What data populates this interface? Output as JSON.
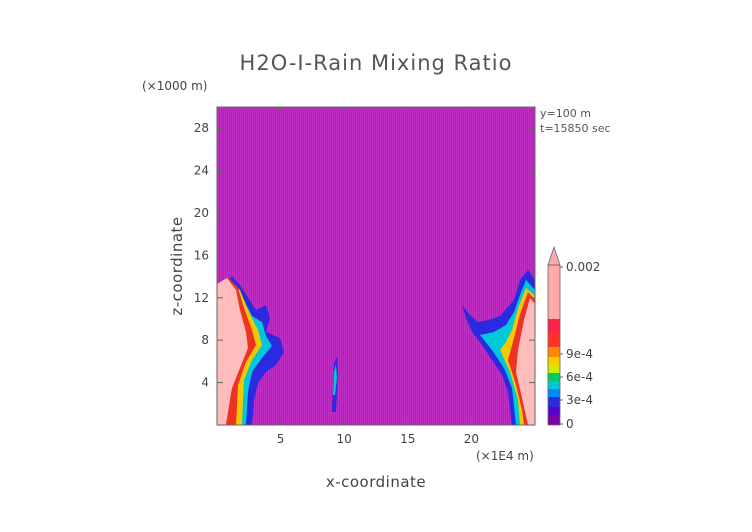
{
  "chart_data": {
    "type": "heatmap",
    "title": "H2O-I-Rain Mixing Ratio",
    "xlabel": "x-coordinate",
    "ylabel": "z-coordinate",
    "x_scale_label": "(×1E4 m)",
    "y_scale_label": "(×1000 m)",
    "x_ticks": [
      5,
      10,
      15,
      20
    ],
    "y_ticks": [
      4,
      8,
      12,
      16,
      20,
      24,
      28
    ],
    "xlim": [
      0,
      25
    ],
    "ylim": [
      0,
      30
    ],
    "annotations": [
      "y=100 m",
      "t=15850 sec"
    ],
    "background_value": 0,
    "colorbar": {
      "tick_labels": [
        "0",
        "3e-4",
        "6e-4",
        "9e-4",
        "0.002"
      ],
      "colors": [
        "#8800aa",
        "#3333ff",
        "#00ccee",
        "#00cc66",
        "#ccee00",
        "#ffcc00",
        "#ff8800",
        "#ff3322",
        "#ff2244",
        "#ffaaaa"
      ]
    },
    "field_colors": {
      "background": "#bb22bb",
      "low": "#3333dd",
      "mid": "#00cccc",
      "mid2": "#ffcc00",
      "high": "#ee3322",
      "max": "#ffbbbb"
    }
  }
}
